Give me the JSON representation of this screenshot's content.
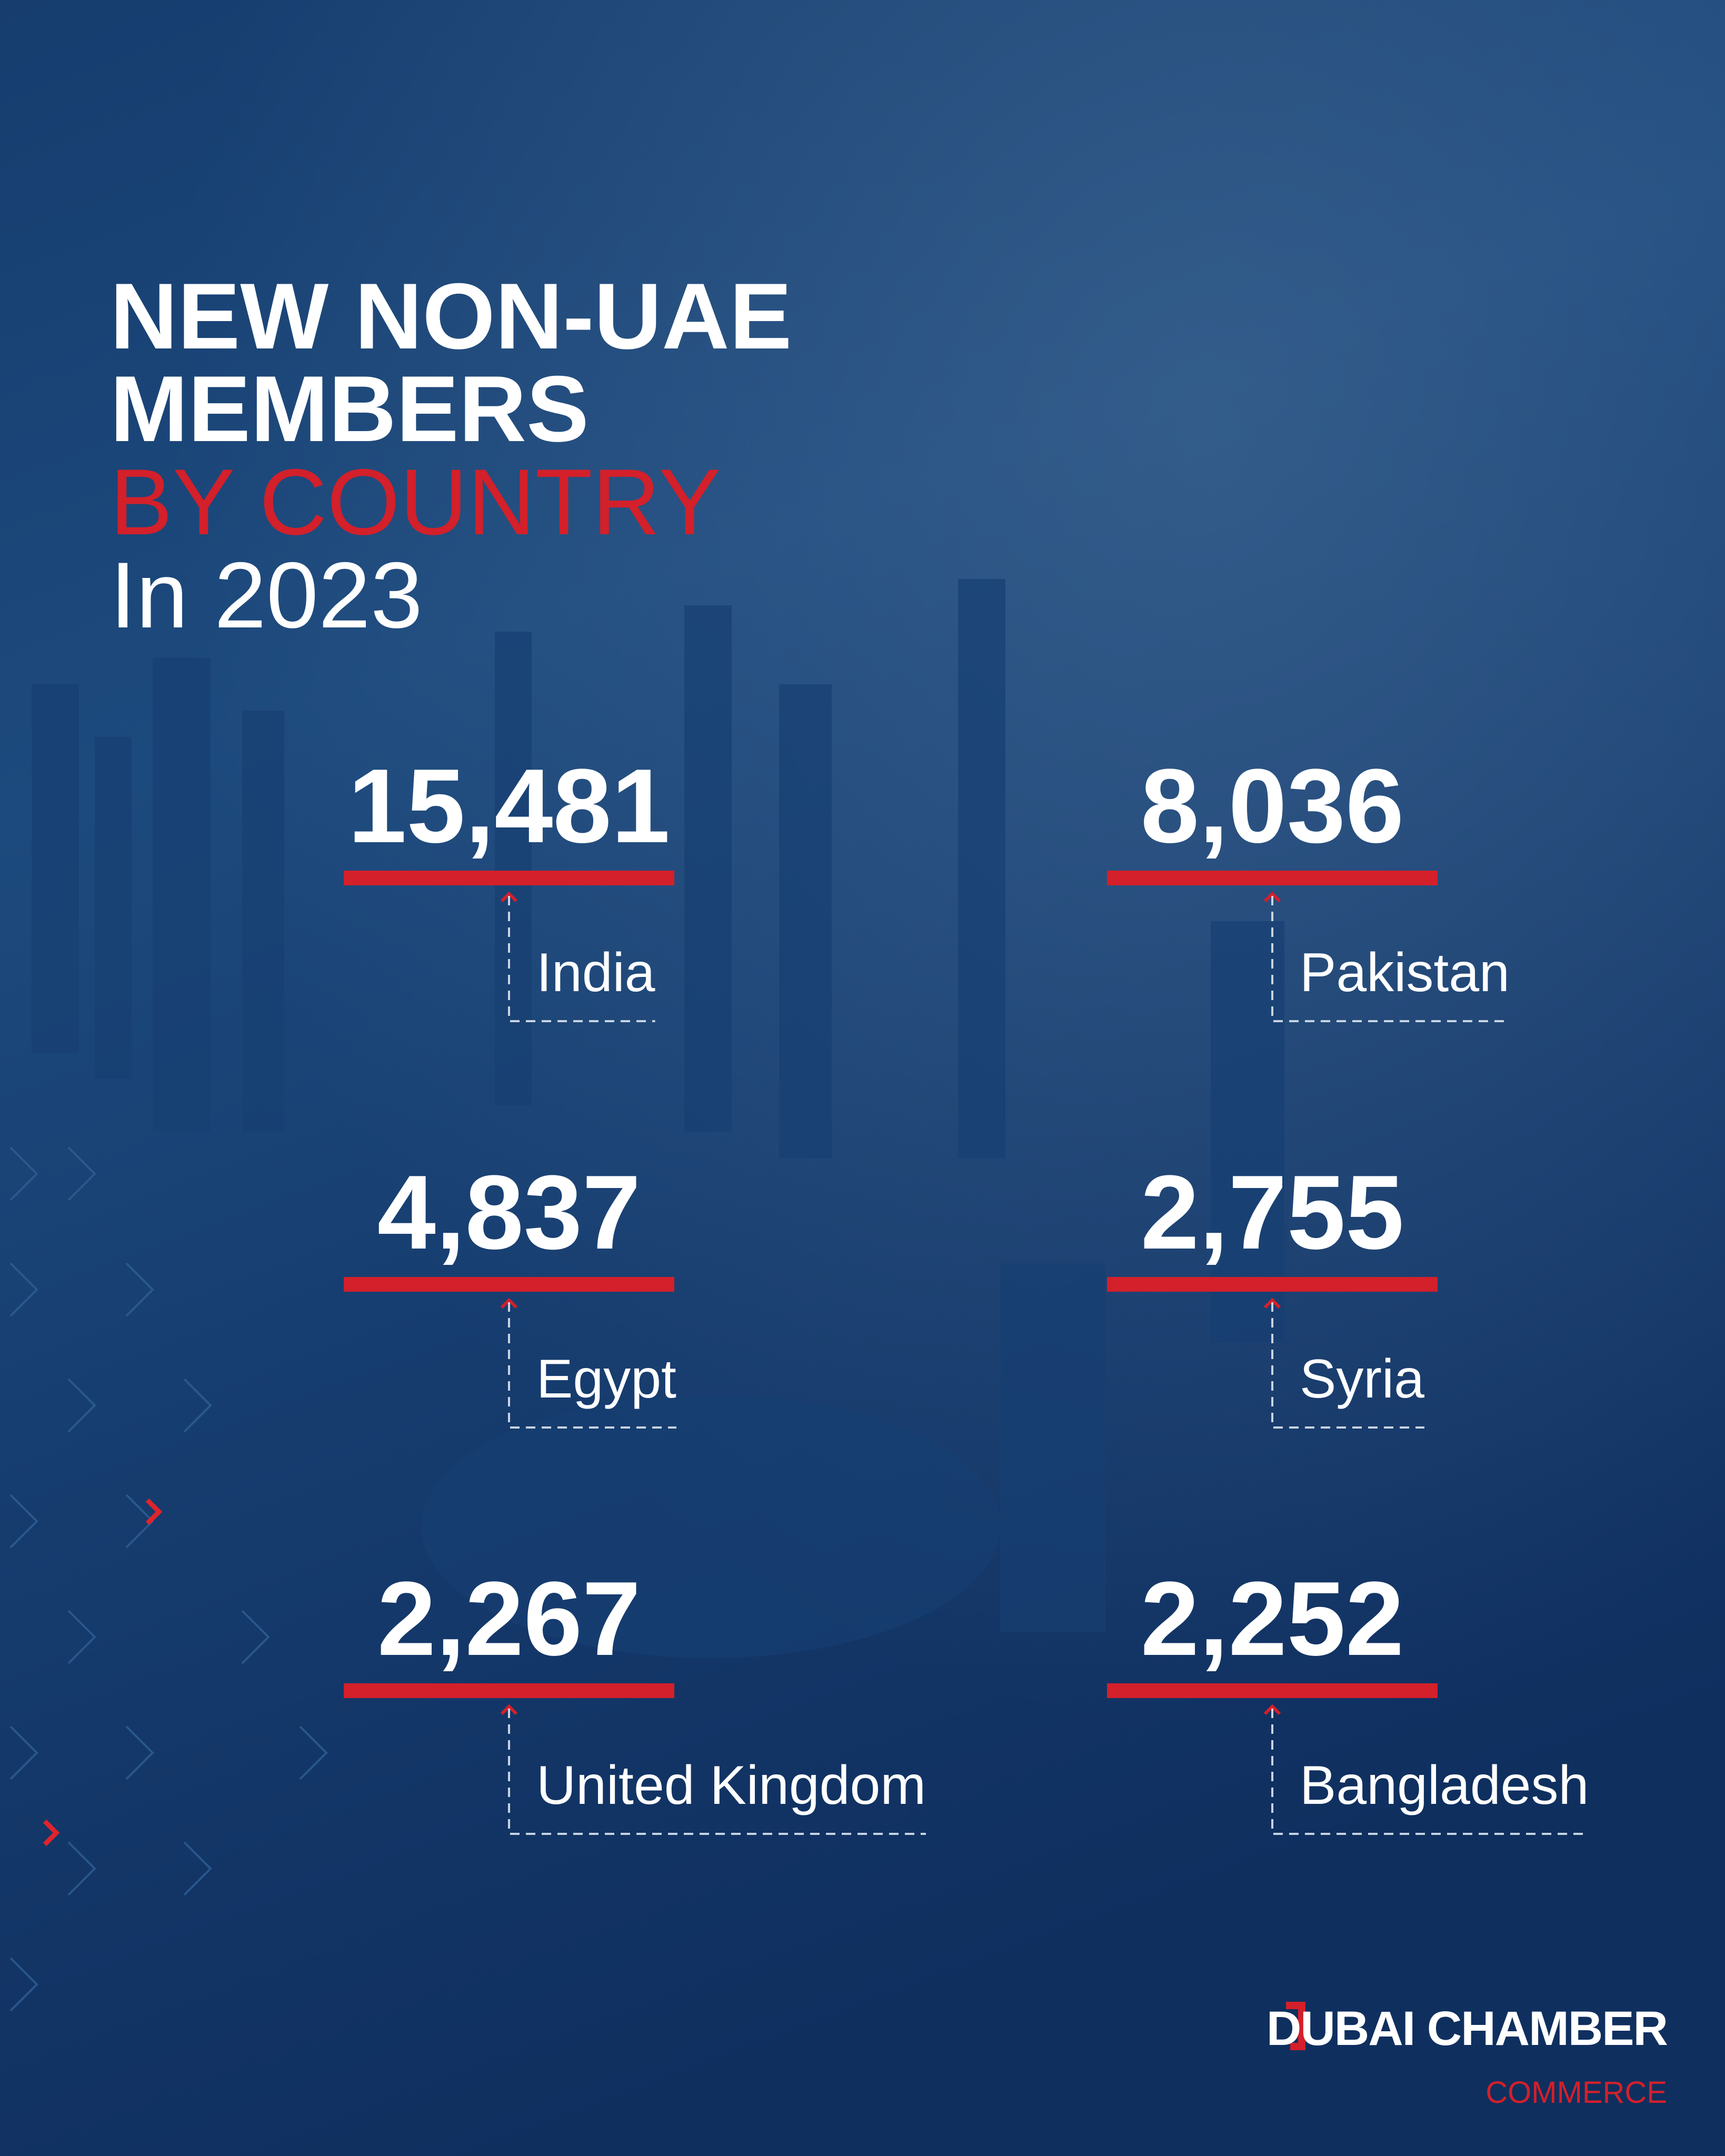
{
  "title": {
    "line1": "NEW NON-UAE",
    "line2": "MEMBERS",
    "line3": "BY COUNTRY",
    "line4": "In 2023"
  },
  "items": [
    {
      "value": "15,481",
      "country": "India"
    },
    {
      "value": "8,036",
      "country": "Pakistan"
    },
    {
      "value": "4,837",
      "country": "Egypt"
    },
    {
      "value": "2,755",
      "country": "Syria"
    },
    {
      "value": "2,267",
      "country": "United Kingdom"
    },
    {
      "value": "2,252",
      "country": "Bangladesh"
    }
  ],
  "logo": {
    "name": "DUBAI CHAMBER",
    "sub": "COMMERCE"
  }
}
